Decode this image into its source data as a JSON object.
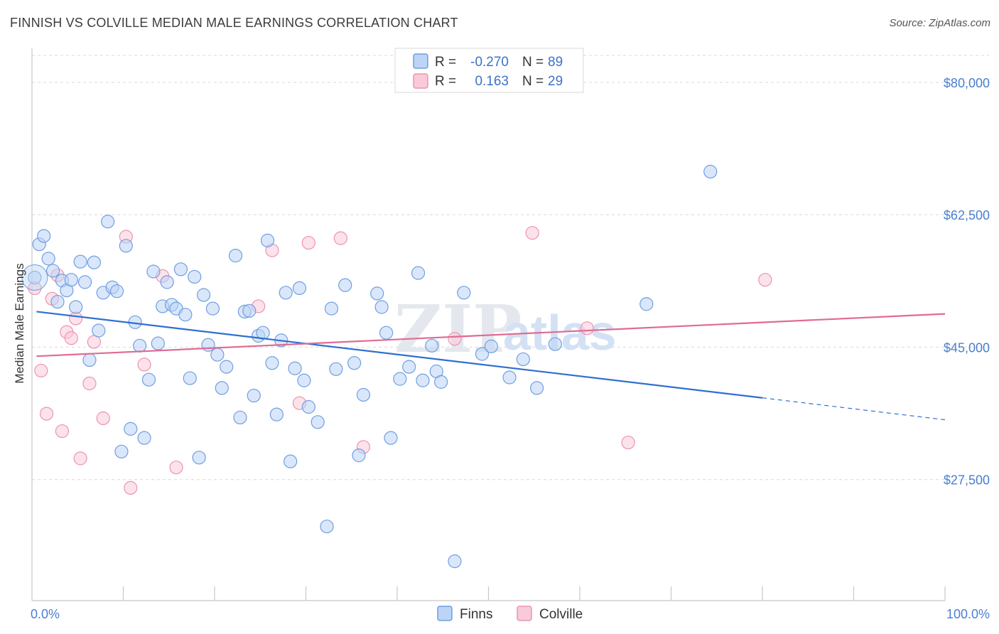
{
  "title": "FINNISH VS COLVILLE MEDIAN MALE EARNINGS CORRELATION CHART",
  "source": "Source: ZipAtlas.com",
  "colors": {
    "finns_fill": "#bcd4f5",
    "finns_stroke": "#6f9fe0",
    "finns_line": "#2f6fd0",
    "colville_fill": "#f9cad8",
    "colville_stroke": "#ee93b1",
    "colville_line": "#e06b93",
    "tick_text": "#4a7fd0",
    "grid": "#d9d9d9"
  },
  "legend": {
    "r_label": "R =",
    "n_label": "N =",
    "finns": {
      "r": "-0.270",
      "n": "89"
    },
    "colville": {
      "r": "0.163",
      "n": "29"
    }
  },
  "watermark": {
    "zip": "ZIP",
    "atlas": "atlas"
  },
  "chart_data": {
    "type": "scatter",
    "title": "FINNISH VS COLVILLE MEDIAN MALE EARNINGS CORRELATION CHART",
    "xlabel": "",
    "ylabel": "Median Male Earnings",
    "xlim": [
      0,
      100
    ],
    "ylim": [
      11500,
      84500
    ],
    "x_tick_labels": [
      {
        "value": 0,
        "label": "0.0%"
      },
      {
        "value": 100,
        "label": "100.0%"
      }
    ],
    "y_ticks": [
      {
        "value": 80000,
        "label": "$80,000"
      },
      {
        "value": 62500,
        "label": "$62,500"
      },
      {
        "value": 45000,
        "label": "$45,000"
      },
      {
        "value": 27500,
        "label": "$27,500"
      }
    ],
    "grid": true,
    "legend_position": "top-center",
    "series": [
      {
        "name": "Finns",
        "r": -0.27,
        "n": 89,
        "trend": {
          "x0": 0.5,
          "y0": 49700,
          "x1": 80,
          "y1": 38300,
          "dash_x1": 100,
          "dash_y1": 35400
        },
        "points": [
          [
            0.3,
            54200
          ],
          [
            0.8,
            58600
          ],
          [
            1.3,
            59700
          ],
          [
            1.8,
            56700
          ],
          [
            2.3,
            55100
          ],
          [
            2.8,
            51000
          ],
          [
            3.3,
            53800
          ],
          [
            3.8,
            52500
          ],
          [
            4.3,
            53900
          ],
          [
            4.8,
            50300
          ],
          [
            5.3,
            56300
          ],
          [
            5.8,
            53600
          ],
          [
            6.3,
            43300
          ],
          [
            6.8,
            56200
          ],
          [
            7.3,
            47200
          ],
          [
            7.8,
            52200
          ],
          [
            8.3,
            61600
          ],
          [
            8.8,
            52900
          ],
          [
            9.3,
            52400
          ],
          [
            9.8,
            31200
          ],
          [
            10.3,
            58400
          ],
          [
            10.8,
            34200
          ],
          [
            11.3,
            48300
          ],
          [
            11.8,
            45200
          ],
          [
            12.3,
            33000
          ],
          [
            12.8,
            40700
          ],
          [
            13.3,
            55000
          ],
          [
            13.8,
            45500
          ],
          [
            14.3,
            50400
          ],
          [
            14.8,
            53600
          ],
          [
            15.3,
            50600
          ],
          [
            15.8,
            50100
          ],
          [
            16.3,
            55300
          ],
          [
            16.8,
            49300
          ],
          [
            17.3,
            40900
          ],
          [
            17.8,
            54300
          ],
          [
            18.3,
            30400
          ],
          [
            18.8,
            51900
          ],
          [
            19.3,
            45300
          ],
          [
            19.8,
            50100
          ],
          [
            20.3,
            44000
          ],
          [
            20.8,
            39600
          ],
          [
            21.3,
            42400
          ],
          [
            22.3,
            57100
          ],
          [
            22.8,
            35700
          ],
          [
            23.3,
            49700
          ],
          [
            23.8,
            49800
          ],
          [
            24.3,
            38600
          ],
          [
            24.8,
            46500
          ],
          [
            25.3,
            46900
          ],
          [
            25.8,
            59100
          ],
          [
            26.3,
            42900
          ],
          [
            26.8,
            36100
          ],
          [
            27.3,
            45900
          ],
          [
            27.8,
            52200
          ],
          [
            28.3,
            29900
          ],
          [
            28.8,
            42200
          ],
          [
            29.3,
            52800
          ],
          [
            29.8,
            40600
          ],
          [
            30.3,
            37100
          ],
          [
            31.3,
            35100
          ],
          [
            32.3,
            21300
          ],
          [
            32.8,
            50100
          ],
          [
            33.3,
            42100
          ],
          [
            34.3,
            53200
          ],
          [
            35.3,
            42900
          ],
          [
            35.8,
            30700
          ],
          [
            36.3,
            38700
          ],
          [
            37.8,
            52100
          ],
          [
            38.3,
            50300
          ],
          [
            38.8,
            46900
          ],
          [
            39.3,
            33000
          ],
          [
            40.3,
            40800
          ],
          [
            41.3,
            42400
          ],
          [
            42.3,
            54800
          ],
          [
            42.8,
            40600
          ],
          [
            43.8,
            45200
          ],
          [
            44.3,
            41800
          ],
          [
            44.8,
            40400
          ],
          [
            46.3,
            16700
          ],
          [
            47.3,
            52200
          ],
          [
            49.3,
            44100
          ],
          [
            50.3,
            45100
          ],
          [
            52.3,
            41000
          ],
          [
            53.8,
            43400
          ],
          [
            55.3,
            39600
          ],
          [
            57.3,
            45400
          ],
          [
            67.3,
            50700
          ],
          [
            74.3,
            68200
          ]
        ]
      },
      {
        "name": "Colville",
        "r": 0.163,
        "n": 29,
        "trend": {
          "x0": 0.5,
          "y0": 43800,
          "x1": 100,
          "y1": 49400
        },
        "points": [
          [
            0.3,
            52800
          ],
          [
            1.0,
            41900
          ],
          [
            1.6,
            36200
          ],
          [
            2.2,
            51400
          ],
          [
            2.8,
            54500
          ],
          [
            3.3,
            33900
          ],
          [
            3.8,
            47000
          ],
          [
            4.3,
            46200
          ],
          [
            4.8,
            48800
          ],
          [
            5.3,
            30300
          ],
          [
            6.3,
            40200
          ],
          [
            6.8,
            45700
          ],
          [
            7.8,
            35600
          ],
          [
            10.3,
            59600
          ],
          [
            10.8,
            26400
          ],
          [
            12.3,
            42700
          ],
          [
            14.3,
            54400
          ],
          [
            15.8,
            29100
          ],
          [
            24.8,
            50400
          ],
          [
            26.3,
            57800
          ],
          [
            29.3,
            37600
          ],
          [
            30.3,
            58800
          ],
          [
            33.8,
            59400
          ],
          [
            36.3,
            31800
          ],
          [
            46.3,
            46100
          ],
          [
            54.8,
            60100
          ],
          [
            60.8,
            47500
          ],
          [
            65.3,
            32400
          ],
          [
            80.3,
            53900
          ]
        ]
      }
    ]
  }
}
